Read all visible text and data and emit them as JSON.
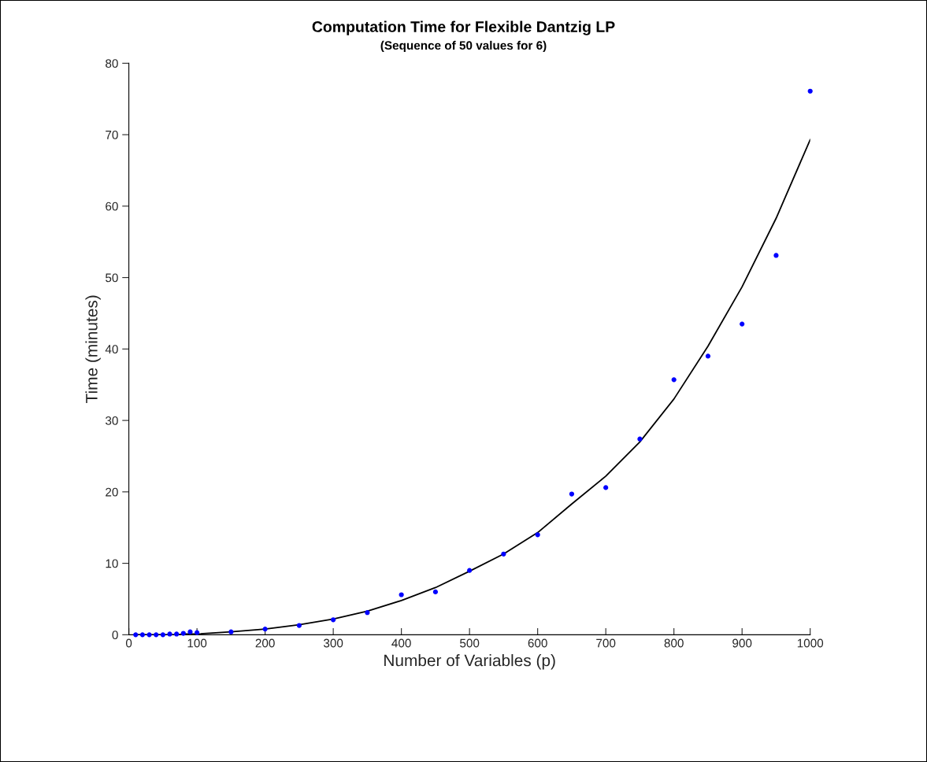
{
  "chart_data": {
    "type": "scatter",
    "title": "Computation Time for Flexible Dantzig LP",
    "subtitle": "(Sequence of 50 values for 6)",
    "xlabel": "Number of Variables (p)",
    "ylabel": "Time (minutes)",
    "x": [
      10,
      20,
      30,
      40,
      50,
      60,
      70,
      80,
      90,
      100,
      150,
      200,
      250,
      300,
      350,
      400,
      450,
      500,
      550,
      600,
      650,
      700,
      750,
      800,
      850,
      900,
      950,
      1000
    ],
    "series": [
      {
        "color": "#0000ff",
        "marker": "circle",
        "values": [
          0,
          0,
          0,
          0,
          0,
          0.1,
          0.1,
          0.2,
          0.4,
          0.3,
          0.4,
          0.8,
          1.3,
          2.1,
          3.1,
          5.6,
          6.0,
          9.0,
          11.3,
          14.0,
          19.7,
          20.6,
          27.4,
          35.7,
          39.0,
          43.5,
          53.1,
          76.1
        ]
      },
      {
        "type": "line",
        "color": "#000000",
        "line_style": "solid",
        "values": [
          0,
          0,
          0,
          0,
          0,
          0,
          0,
          0.1,
          0.1,
          0.1,
          0.4,
          0.8,
          1.4,
          2.2,
          3.3,
          4.8,
          6.6,
          8.9,
          11.3,
          14.3,
          18.3,
          22.2,
          27.0,
          33.0,
          40.4,
          48.7,
          58.3,
          69.3
        ]
      }
    ],
    "xlim": [
      0,
      1000
    ],
    "xticks": [
      0,
      100,
      200,
      300,
      400,
      500,
      600,
      700,
      800,
      900,
      1000
    ],
    "ylim": [
      0,
      80
    ],
    "yticks": [
      0,
      10,
      20,
      30,
      40,
      50,
      60,
      70,
      80
    ],
    "grid": false,
    "legend": false
  }
}
